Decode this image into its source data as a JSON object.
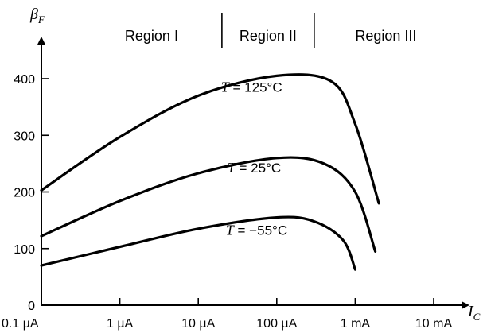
{
  "chart_data": {
    "type": "line",
    "title": "",
    "ylabel": {
      "symbol": "β",
      "subscript": "F"
    },
    "xlabel": {
      "symbol": "I",
      "subscript": "C"
    },
    "x_scale": "log",
    "xlim": [
      "0.1 µA",
      "10 mA"
    ],
    "ylim": [
      0,
      420
    ],
    "x_ticks": [
      "0.1 µA",
      "1 µA",
      "10 µA",
      "100 µA",
      "1 mA",
      "10 mA"
    ],
    "y_ticks": [
      "0",
      "100",
      "200",
      "300",
      "400"
    ],
    "regions": [
      "Region I",
      "Region II",
      "Region III"
    ],
    "region_boundaries": [
      "20 µA",
      "300 µA"
    ],
    "grid": false,
    "series": [
      {
        "name": "T = 125°C",
        "label_parts": [
          "T",
          " = 125°C"
        ],
        "x": [
          "0.1 µA",
          "1 µA",
          "10 µA",
          "100 µA",
          "500 µA",
          "1 mA",
          "2 mA"
        ],
        "y": [
          203,
          297,
          370,
          405,
          395,
          320,
          180
        ]
      },
      {
        "name": "T = 25°C",
        "label_parts": [
          "T",
          " = 25°C"
        ],
        "x": [
          "0.1 µA",
          "1 µA",
          "10 µA",
          "100 µA",
          "400 µA",
          "1 mA",
          "1.8 mA"
        ],
        "y": [
          122,
          184,
          233,
          260,
          250,
          200,
          95
        ]
      },
      {
        "name": "T = −55°C",
        "label_parts": [
          "T",
          " = −55°C"
        ],
        "x": [
          "0.1 µA",
          "1 µA",
          "10 µA",
          "100 µA",
          "300 µA",
          "700 µA",
          "1 mA"
        ],
        "y": [
          70,
          103,
          135,
          155,
          148,
          115,
          63
        ]
      }
    ]
  }
}
